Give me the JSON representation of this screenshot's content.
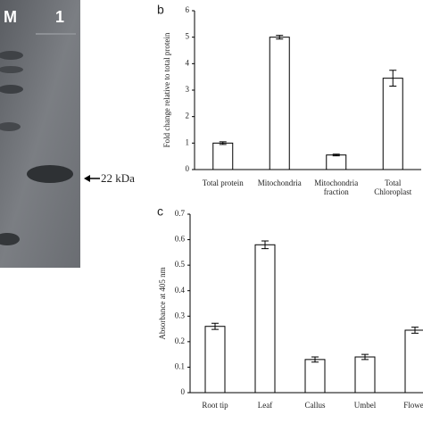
{
  "gel": {
    "lanes": [
      "M",
      "1"
    ],
    "marker": "22 kDa"
  },
  "chart_data": [
    {
      "type": "bar",
      "panel_label": "b",
      "ylabel": "Fold change relative to total protein",
      "categories": [
        "Total protein",
        "Mitochondria",
        "Mitochondria fraction",
        "Total Chloroplast"
      ],
      "values": [
        1.0,
        5.0,
        0.55,
        3.45
      ],
      "errors": [
        0.05,
        0.07,
        0.03,
        0.3
      ],
      "color": "#ffffff",
      "ylim": [
        0,
        6
      ],
      "yticks": [
        0,
        1,
        2,
        3,
        4,
        5,
        6
      ]
    },
    {
      "type": "bar",
      "panel_label": "c",
      "ylabel": "Absorbance at 405 nm",
      "categories": [
        "Root tip",
        "Leaf",
        "Callus",
        "Umbel",
        "Flower"
      ],
      "values": [
        0.26,
        0.58,
        0.13,
        0.14,
        0.245
      ],
      "errors": [
        0.012,
        0.015,
        0.01,
        0.01,
        0.012
      ],
      "color": "#ffffff",
      "ylim": [
        0,
        0.7
      ],
      "yticks": [
        0,
        0.1,
        0.2,
        0.3,
        0.4,
        0.5,
        0.6,
        0.7
      ]
    }
  ]
}
